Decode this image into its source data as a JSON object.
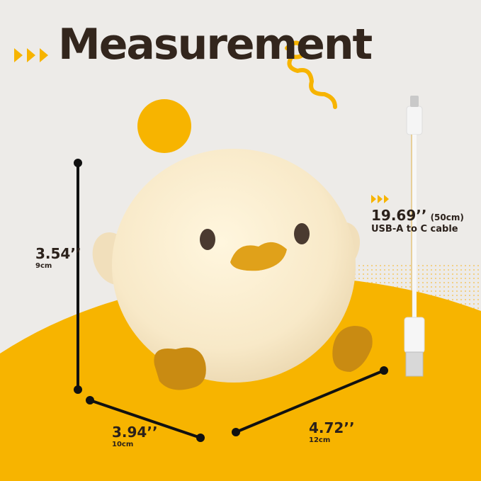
{
  "title": "Measurement",
  "colors": {
    "background": "#edebe8",
    "accent": "#f7b400",
    "text": "#33261d",
    "duck": "#f9ecd2",
    "beak": "#e0a11a"
  },
  "dimensions": {
    "height": {
      "value": "3.54’’",
      "metric": "9cm"
    },
    "depth": {
      "value": "3.94’’",
      "metric": "10cm"
    },
    "width": {
      "value": "4.72’’",
      "metric": "12cm"
    }
  },
  "cable": {
    "length": "19.69’’",
    "metric": "(50cm)",
    "label": "USB-A to C cable"
  }
}
